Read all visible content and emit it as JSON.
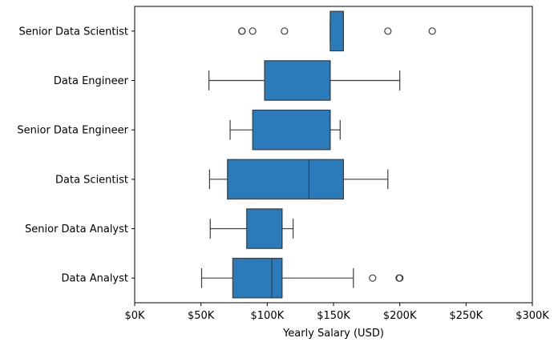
{
  "chart_data": {
    "type": "box",
    "orientation": "horizontal",
    "title": "",
    "xlabel": "Yearly Salary (USD)",
    "ylabel": "",
    "xlim": [
      0,
      300000
    ],
    "xticks": [
      0,
      50000,
      100000,
      150000,
      200000,
      250000,
      300000
    ],
    "xtick_labels": [
      "$0K",
      "$50K",
      "$100K",
      "$150K",
      "$200K",
      "$250K",
      "$300K"
    ],
    "grid": false,
    "box_color": "#2b7bba",
    "line_color": "#3d3d3d",
    "categories": [
      "Senior Data Scientist",
      "Data Engineer",
      "Senior Data Engineer",
      "Data Scientist",
      "Senior Data Analyst",
      "Data Analyst"
    ],
    "boxes": [
      {
        "category": "Senior Data Scientist",
        "whisker_low": 147500,
        "q1": 147500,
        "median": 157500,
        "q3": 157500,
        "whisker_high": 157500,
        "outliers": [
          80850,
          81000,
          89000,
          113000,
          191000,
          224500
        ]
      },
      {
        "category": "Data Engineer",
        "whisker_low": 56000,
        "q1": 98000,
        "median": 147500,
        "q3": 147500,
        "whisker_high": 200000,
        "outliers": []
      },
      {
        "category": "Senior Data Engineer",
        "whisker_low": 72000,
        "q1": 89000,
        "median": 147500,
        "q3": 147500,
        "whisker_high": 155000,
        "outliers": []
      },
      {
        "category": "Data Scientist",
        "whisker_low": 56500,
        "q1": 70000,
        "median": 131500,
        "q3": 157500,
        "whisker_high": 191000,
        "outliers": []
      },
      {
        "category": "Senior Data Analyst",
        "whisker_low": 57000,
        "q1": 84500,
        "median": 111200,
        "q3": 111200,
        "whisker_high": 119500,
        "outliers": []
      },
      {
        "category": "Data Analyst",
        "whisker_low": 50500,
        "q1": 74000,
        "median": 103500,
        "q3": 111200,
        "whisker_high": 165000,
        "outliers": [
          179500,
          199500,
          200000
        ]
      }
    ]
  }
}
